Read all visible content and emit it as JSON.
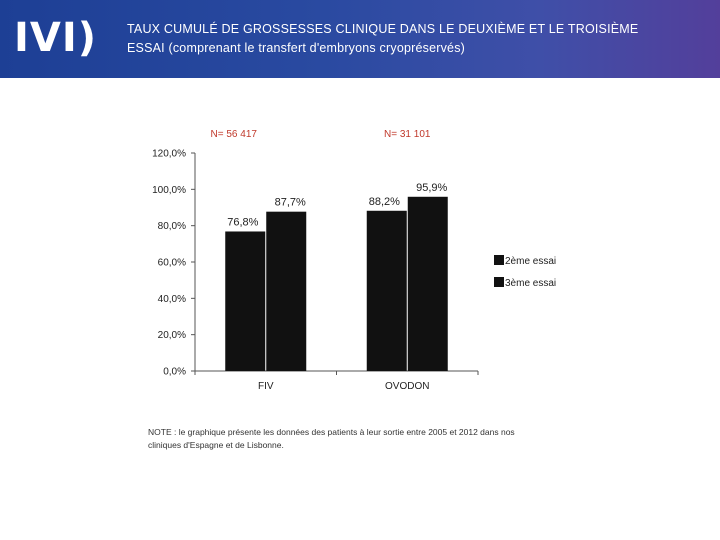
{
  "header": {
    "logo_text": "IVI)",
    "title_line1": "TAUX CUMULÉ DE GROSSESSES CLINIQUE DANS LE DEUXIÈME ET LE TROISIÈME",
    "title_line2": "ESSAI (comprenant le transfert d'embryons cryopréservés)"
  },
  "colors": {
    "header_bg": "#2a4aa1",
    "bars": "#111111",
    "n_labels": "#c0392b"
  },
  "chart_data": {
    "type": "bar",
    "categories": [
      "FIV",
      "OVODON"
    ],
    "series": [
      {
        "name": "2ème essai",
        "values": [
          76.8,
          88.2
        ]
      },
      {
        "name": "3ème essai",
        "values": [
          87.7,
          95.9
        ]
      }
    ],
    "value_labels": [
      [
        "76,8%",
        "88,2%"
      ],
      [
        "87,7%",
        "95,9%"
      ]
    ],
    "group_annotations": [
      "N= 56 417",
      "N= 31 101"
    ],
    "y_ticks": [
      "0,0%",
      "20,0%",
      "40,0%",
      "60,0%",
      "80,0%",
      "100,0%",
      "120,0%"
    ],
    "ylim": [
      0,
      120
    ],
    "y_step": 20,
    "legend_position": "right",
    "grid": false
  },
  "note": {
    "line1": "NOTE : le graphique présente les données des patients à leur sortie entre 2005 et 2012 dans nos",
    "line2": "cliniques d'Espagne et de Lisbonne."
  }
}
